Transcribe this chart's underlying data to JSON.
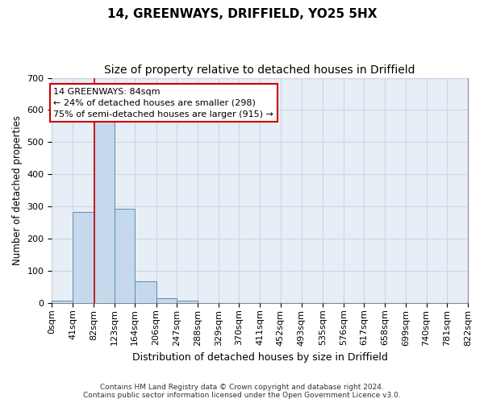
{
  "title1": "14, GREENWAYS, DRIFFIELD, YO25 5HX",
  "title2": "Size of property relative to detached houses in Driffield",
  "xlabel": "Distribution of detached houses by size in Driffield",
  "ylabel": "Number of detached properties",
  "bin_edges": [
    0,
    41,
    82,
    123,
    164,
    206,
    247,
    288,
    329,
    370,
    411,
    452,
    493,
    535,
    576,
    617,
    658,
    699,
    740,
    781,
    822
  ],
  "bin_counts": [
    8,
    282,
    563,
    293,
    67,
    15,
    8,
    0,
    0,
    0,
    0,
    0,
    0,
    0,
    0,
    0,
    0,
    0,
    0,
    0
  ],
  "bar_color": "#c5d8ec",
  "bar_edge_color": "#5b8db8",
  "grid_color": "#c8d8ea",
  "bg_color": "#e8eef6",
  "property_size": 84,
  "property_line_color": "#cc0000",
  "annotation_line1": "14 GREENWAYS: 84sqm",
  "annotation_line2": "← 24% of detached houses are smaller (298)",
  "annotation_line3": "75% of semi-detached houses are larger (915) →",
  "annotation_box_color": "#ffffff",
  "annotation_box_edge_color": "#cc0000",
  "ylim": [
    0,
    700
  ],
  "yticks": [
    0,
    100,
    200,
    300,
    400,
    500,
    600,
    700
  ],
  "footer": "Contains HM Land Registry data © Crown copyright and database right 2024.\nContains public sector information licensed under the Open Government Licence v3.0.",
  "title1_fontsize": 11,
  "title2_fontsize": 10,
  "xlabel_fontsize": 9,
  "ylabel_fontsize": 8.5,
  "tick_fontsize": 8,
  "footer_fontsize": 6.5
}
